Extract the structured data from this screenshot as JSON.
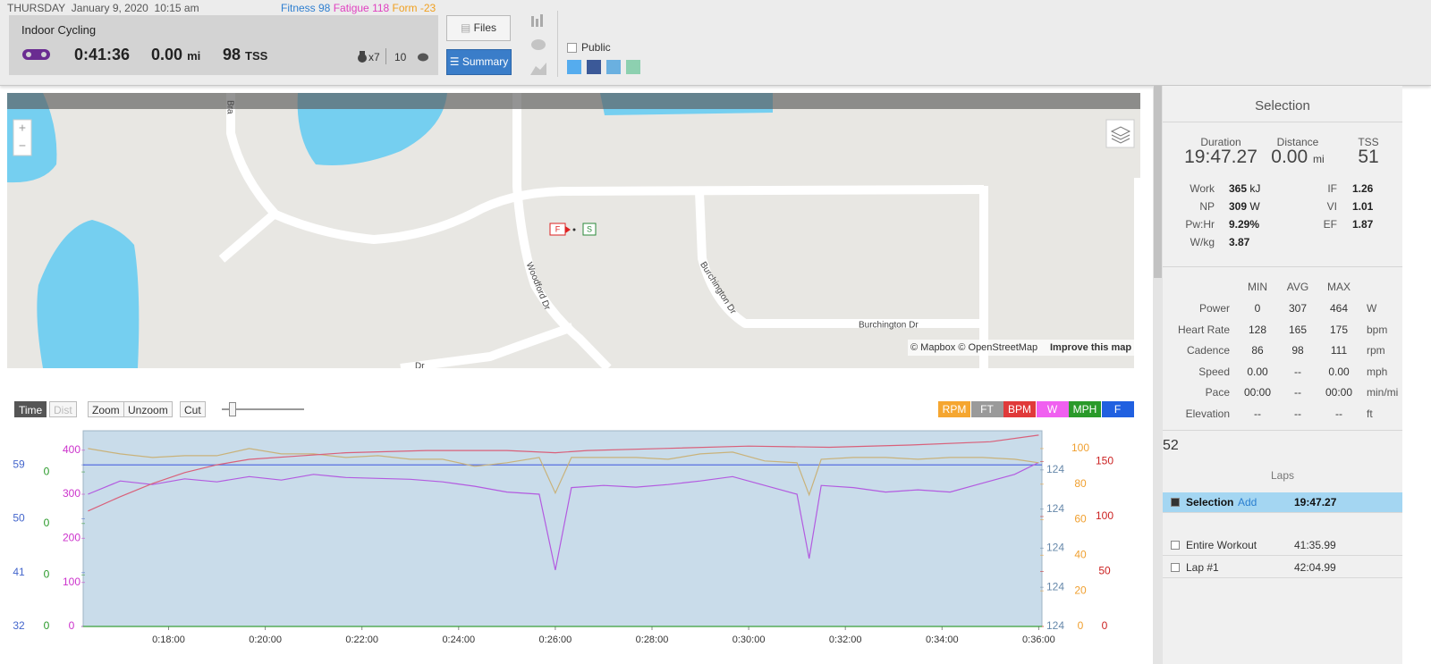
{
  "header": {
    "day": "THURSDAY",
    "date": "January 9, 2020",
    "time": "10:15 am",
    "fitness": "Fitness 98",
    "fatigue": "Fatigue 118",
    "form": "Form -23"
  },
  "workout": {
    "title": "Indoor Cycling",
    "duration": "0:41:36",
    "distance": "0.00",
    "distance_unit": "mi",
    "tss": "98",
    "tss_unit": "TSS",
    "kudos": "x7",
    "comments": "10"
  },
  "actions": {
    "files": "Files",
    "summary": "Summary",
    "public": "Public"
  },
  "map": {
    "streets": [
      "Bra",
      "Woodford Dr",
      "Burchington Dr",
      "Burchington Dr",
      "Dr"
    ],
    "attribution": "© Mapbox © OpenStreetMap",
    "improve": "Improve this map",
    "markers": [
      "F",
      "S"
    ]
  },
  "toolbar": {
    "time": "Time",
    "dist": "Dist",
    "zoom": "Zoom",
    "unzoom": "Unzoom",
    "cut": "Cut",
    "toggles": [
      {
        "label": "RPM",
        "color": "#f5a630"
      },
      {
        "label": "FT",
        "color": "#9a9a9a"
      },
      {
        "label": "BPM",
        "color": "#e03a3a"
      },
      {
        "label": "W",
        "color": "#f060f0"
      },
      {
        "label": "MPH",
        "color": "#2a9a2a"
      },
      {
        "label": "F",
        "color": "#2060e0"
      }
    ]
  },
  "chart_data": {
    "type": "line",
    "xlim": [
      974,
      2164
    ],
    "xticks": [
      {
        "value": 1080,
        "label": "0:18:00"
      },
      {
        "value": 1200,
        "label": "0:20:00"
      },
      {
        "value": 1320,
        "label": "0:22:00"
      },
      {
        "value": 1440,
        "label": "0:24:00"
      },
      {
        "value": 1560,
        "label": "0:26:00"
      },
      {
        "value": 1680,
        "label": "0:28:00"
      },
      {
        "value": 1800,
        "label": "0:30:00"
      },
      {
        "value": 1920,
        "label": "0:32:00"
      },
      {
        "value": 2040,
        "label": "0:34:00"
      },
      {
        "value": 2160,
        "label": "0:36:00"
      }
    ],
    "axes": [
      {
        "side": "left",
        "color": "#4466cc",
        "ylim": [
          32,
          64.7
        ],
        "yticks": [
          32,
          41,
          50,
          59
        ]
      },
      {
        "side": "left",
        "color": "#2a9a2a",
        "ylim": [
          0,
          0.38
        ],
        "yticks": [
          {
            "value": 0,
            "label": "0"
          },
          {
            "value": 0.1,
            "label": "0"
          },
          {
            "value": 0.2,
            "label": "0"
          },
          {
            "value": 0.3,
            "label": "0"
          }
        ]
      },
      {
        "side": "left",
        "color": "#cc33cc",
        "ylim": [
          0,
          444
        ],
        "yticks": [
          0,
          100,
          200,
          300,
          400
        ]
      },
      {
        "side": "right",
        "color": "#6688aa",
        "ylim": [
          124,
          124.5
        ],
        "yticks": [
          {
            "value": 124,
            "label": "124"
          },
          {
            "value": 124.1,
            "label": "124"
          },
          {
            "value": 124.2,
            "label": "124"
          },
          {
            "value": 124.3,
            "label": "124"
          },
          {
            "value": 124.4,
            "label": "124"
          }
        ]
      },
      {
        "side": "right",
        "color": "#f0a030",
        "ylim": [
          0,
          110
        ],
        "yticks": [
          0,
          20,
          40,
          60,
          80,
          100
        ]
      },
      {
        "side": "right",
        "color": "#cc2222",
        "ylim": [
          0,
          178
        ],
        "yticks": [
          0,
          50,
          100,
          150
        ]
      }
    ],
    "series": [
      {
        "axis": 0,
        "color": "#4a63e0",
        "x": [
          974,
          2164
        ],
        "values": [
          59,
          59
        ]
      },
      {
        "axis": 1,
        "color": "#3aa03a",
        "x": [
          974,
          2164
        ],
        "values": [
          0,
          0
        ]
      },
      {
        "axis": 2,
        "color": "#b35be0",
        "x": [
          980,
          1020,
          1060,
          1100,
          1140,
          1180,
          1220,
          1260,
          1300,
          1340,
          1380,
          1420,
          1460,
          1500,
          1540,
          1560,
          1580,
          1620,
          1660,
          1700,
          1740,
          1780,
          1820,
          1860,
          1875,
          1890,
          1930,
          1970,
          2010,
          2050,
          2090,
          2130,
          2160
        ],
        "values": [
          300,
          330,
          322,
          335,
          328,
          340,
          332,
          345,
          338,
          336,
          334,
          328,
          318,
          305,
          300,
          128,
          315,
          320,
          316,
          322,
          330,
          340,
          320,
          300,
          154,
          320,
          315,
          305,
          310,
          305,
          325,
          345,
          372
        ]
      },
      {
        "axis": 4,
        "color": "#c9b27a",
        "x": [
          980,
          1020,
          1060,
          1100,
          1140,
          1180,
          1220,
          1260,
          1300,
          1340,
          1380,
          1420,
          1460,
          1500,
          1540,
          1560,
          1580,
          1620,
          1660,
          1700,
          1740,
          1780,
          1820,
          1860,
          1875,
          1890,
          1930,
          1970,
          2010,
          2050,
          2090,
          2130,
          2160
        ],
        "values": [
          100,
          97,
          95,
          96,
          96,
          100,
          97,
          97,
          95,
          96,
          94,
          94,
          90,
          92,
          95,
          75,
          95,
          95,
          95,
          94,
          97,
          98,
          93,
          92,
          74,
          94,
          95,
          95,
          94,
          95,
          95,
          94,
          92
        ]
      },
      {
        "axis": 5,
        "color": "#d9607a",
        "x": [
          980,
          1020,
          1060,
          1100,
          1140,
          1180,
          1240,
          1300,
          1400,
          1500,
          1560,
          1600,
          1700,
          1800,
          1900,
          2000,
          2100,
          2160
        ],
        "values": [
          105,
          118,
          130,
          140,
          147,
          152,
          155,
          158,
          160,
          160,
          158,
          160,
          162,
          164,
          163,
          165,
          168,
          174
        ]
      }
    ]
  },
  "panel": {
    "title": "Selection",
    "stats": [
      {
        "label": "Duration",
        "value": "19:47.27"
      },
      {
        "label": "Distance",
        "value": "0.00",
        "unit": "mi"
      },
      {
        "label": "TSS",
        "value": "51"
      }
    ],
    "metrics_left": [
      {
        "label": "Work",
        "value": "365",
        "unit": "kJ"
      },
      {
        "label": "NP",
        "value": "309",
        "unit": "W"
      },
      {
        "label": "Pw:Hr",
        "value": "9.29%"
      },
      {
        "label": "W/kg",
        "value": "3.87"
      }
    ],
    "metrics_right": [
      {
        "label": "IF",
        "value": "1.26"
      },
      {
        "label": "VI",
        "value": "1.01"
      },
      {
        "label": "EF",
        "value": "1.87"
      }
    ],
    "table": {
      "columns": [
        "MIN",
        "AVG",
        "MAX"
      ],
      "rows": [
        [
          "Power",
          "0",
          "307",
          "464",
          "W"
        ],
        [
          "Heart Rate",
          "128",
          "165",
          "175",
          "bpm"
        ],
        [
          "Cadence",
          "86",
          "98",
          "111",
          "rpm"
        ],
        [
          "Speed",
          "0.00",
          "--",
          "0.00",
          "mph"
        ],
        [
          "Pace",
          "00:00",
          "--",
          "00:00",
          "min/mi"
        ],
        [
          "Elevation",
          "--",
          "--",
          "--",
          "ft"
        ]
      ]
    },
    "badges": [
      "5",
      "2"
    ],
    "laps_title": "Laps",
    "laps": [
      {
        "name": "Selection",
        "action": "Add",
        "time": "19:47.27"
      },
      {
        "name": "Entire Workout",
        "time": "41:35.99"
      },
      {
        "name": "Lap #1",
        "time": "42:04.99"
      }
    ]
  }
}
